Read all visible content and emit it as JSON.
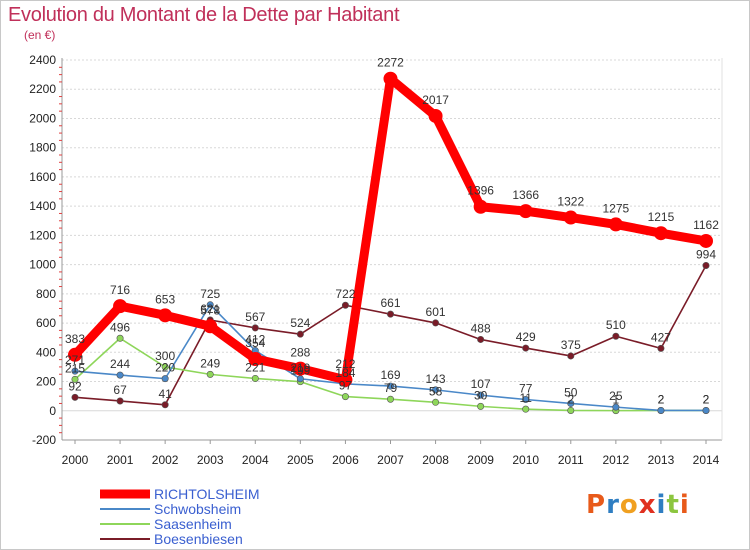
{
  "header": {
    "title": "Evolution du Montant de la Dette par Habitant",
    "subtitle": "(en €)"
  },
  "logo": {
    "text": "Proxiti",
    "colors": [
      "#e85a1a",
      "#2f7ec2",
      "#f0a020",
      "#e03020",
      "#2f7ec2",
      "#8cc63f",
      "#e85a1a"
    ]
  },
  "chart_data": {
    "type": "line",
    "title": "Evolution du Montant de la Dette par Habitant",
    "subtitle": "(en €)",
    "ylim": [
      -200,
      2400
    ],
    "yticks": [
      -200,
      0,
      200,
      400,
      600,
      800,
      1000,
      1200,
      1400,
      1600,
      1800,
      2000,
      2200,
      2400
    ],
    "x": [
      "2000",
      "2001",
      "2002",
      "2003",
      "2004",
      "2005",
      "2006",
      "2007",
      "2008",
      "2009",
      "2010",
      "2011",
      "2012",
      "2013",
      "2014"
    ],
    "grid": "horizontal",
    "legend_position": "bottom-left",
    "series": [
      {
        "name": "Boesenbiesen",
        "color": "#7a1c28",
        "values": [
          92,
          67,
          41,
          621,
          567,
          524,
          722,
          661,
          601,
          488,
          429,
          375,
          510,
          427,
          994
        ],
        "labels": [
          "92",
          "67",
          "41",
          "621",
          "567",
          "524",
          "722",
          "661",
          "601",
          "488",
          "429",
          "375",
          "510",
          "427",
          "994"
        ]
      },
      {
        "name": "Saasenheim",
        "color": "#8ed65a",
        "values": [
          215,
          496,
          300,
          249,
          221,
          199,
          97,
          79,
          58,
          30,
          11,
          2,
          1,
          2,
          2
        ],
        "labels": [
          "215",
          "496",
          "300",
          "249",
          "221",
          "199",
          "97",
          "79",
          "58",
          "30",
          "11",
          "2",
          "1",
          "2",
          "2"
        ]
      },
      {
        "name": "Schwobsheim",
        "color": "#4a88c8",
        "values": [
          271,
          244,
          220,
          725,
          412,
          219,
          184,
          169,
          143,
          107,
          77,
          50,
          25,
          2,
          2
        ],
        "labels": [
          "271",
          "244",
          "220",
          "725",
          "412",
          "219",
          "184",
          "169",
          "143",
          "107",
          "77",
          "50",
          "25",
          "2",
          "2"
        ]
      },
      {
        "name": "RICHTOLSHEIM",
        "color": "#ff0000",
        "values": [
          383,
          716,
          653,
          578,
          354,
          288,
          212,
          2272,
          2017,
          1396,
          1366,
          1322,
          1275,
          1215,
          1162
        ],
        "labels": [
          "383",
          "716",
          "653",
          "578",
          "354",
          "288",
          "212",
          "2272",
          "2017",
          "1396",
          "1366",
          "1322",
          "1275",
          "1215",
          "1162"
        ]
      }
    ]
  }
}
